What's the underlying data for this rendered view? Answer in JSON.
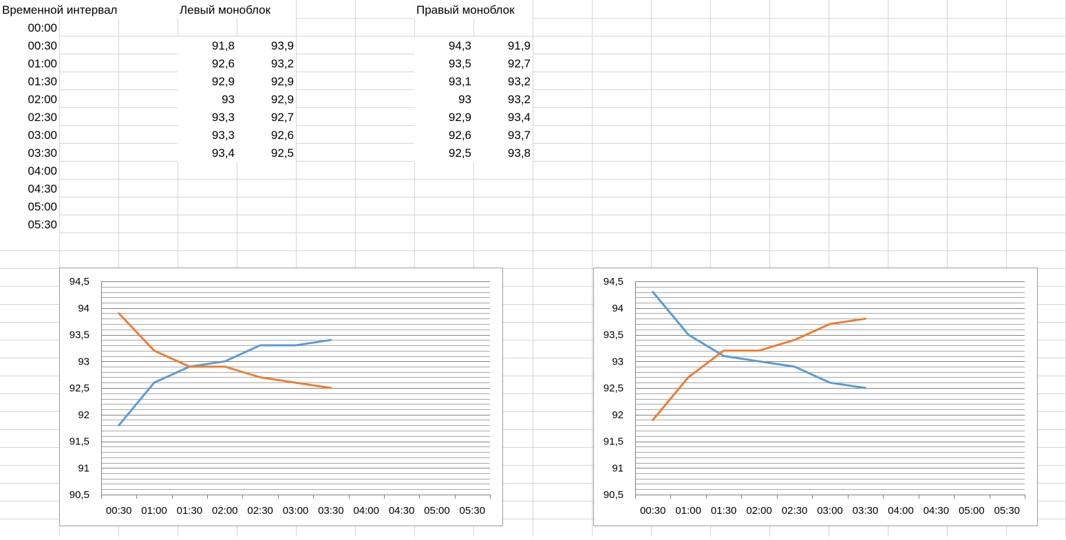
{
  "sheet": {
    "headers": {
      "time_interval": "Временной интервал",
      "left_unit": "Левый моноблок",
      "right_unit": "Правый моноблок"
    },
    "times": [
      "00:00",
      "00:30",
      "01:00",
      "01:30",
      "02:00",
      "02:30",
      "03:00",
      "03:30",
      "04:00",
      "04:30",
      "05:00",
      "05:30"
    ],
    "left_col1": [
      "91,8",
      "92,6",
      "92,9",
      "93",
      "93,3",
      "93,3",
      "93,4"
    ],
    "left_col2": [
      "93,9",
      "93,2",
      "92,9",
      "92,9",
      "92,7",
      "92,6",
      "92,5"
    ],
    "right_col1": [
      "94,3",
      "93,5",
      "93,1",
      "93",
      "92,9",
      "92,6",
      "92,5"
    ],
    "right_col2": [
      "91,9",
      "92,7",
      "93,2",
      "93,2",
      "93,4",
      "93,7",
      "93,8"
    ]
  },
  "colors": {
    "series1": "#5b9bd5",
    "series2": "#ed7d31",
    "gridline": "#d4d4d4",
    "chart_gridline": "#a6a6a6",
    "chart_border": "#9a9a9a"
  },
  "chart_data": [
    {
      "type": "line",
      "categories": [
        "00:30",
        "01:00",
        "01:30",
        "02:00",
        "02:30",
        "03:00",
        "03:30",
        "04:00",
        "04:30",
        "05:00",
        "05:30"
      ],
      "series": [
        {
          "values": [
            91.8,
            92.6,
            92.9,
            93.0,
            93.3,
            93.3,
            93.4,
            null,
            null,
            null,
            null
          ],
          "color": "#5b9bd5"
        },
        {
          "values": [
            93.9,
            93.2,
            92.9,
            92.9,
            92.7,
            92.6,
            92.5,
            null,
            null,
            null,
            null
          ],
          "color": "#ed7d31"
        }
      ],
      "ylim": [
        90.5,
        94.5
      ],
      "y_ticks": [
        "90,5",
        "91",
        "91,5",
        "92",
        "92,5",
        "93",
        "93,5",
        "94",
        "94,5"
      ],
      "major_step": 0.5,
      "minor_step": 0.1,
      "grid": true,
      "legend": "none",
      "title": ""
    },
    {
      "type": "line",
      "categories": [
        "00:30",
        "01:00",
        "01:30",
        "02:00",
        "02:30",
        "03:00",
        "03:30",
        "04:00",
        "04:30",
        "05:00",
        "05:30"
      ],
      "series": [
        {
          "values": [
            94.3,
            93.5,
            93.1,
            93.0,
            92.9,
            92.6,
            92.5,
            null,
            null,
            null,
            null
          ],
          "color": "#5b9bd5"
        },
        {
          "values": [
            91.9,
            92.7,
            93.2,
            93.2,
            93.4,
            93.7,
            93.8,
            null,
            null,
            null,
            null
          ],
          "color": "#ed7d31"
        }
      ],
      "ylim": [
        90.5,
        94.5
      ],
      "y_ticks": [
        "90,5",
        "91",
        "91,5",
        "92",
        "92,5",
        "93",
        "93,5",
        "94",
        "94,5"
      ],
      "major_step": 0.5,
      "minor_step": 0.1,
      "grid": true,
      "legend": "none",
      "title": ""
    }
  ]
}
